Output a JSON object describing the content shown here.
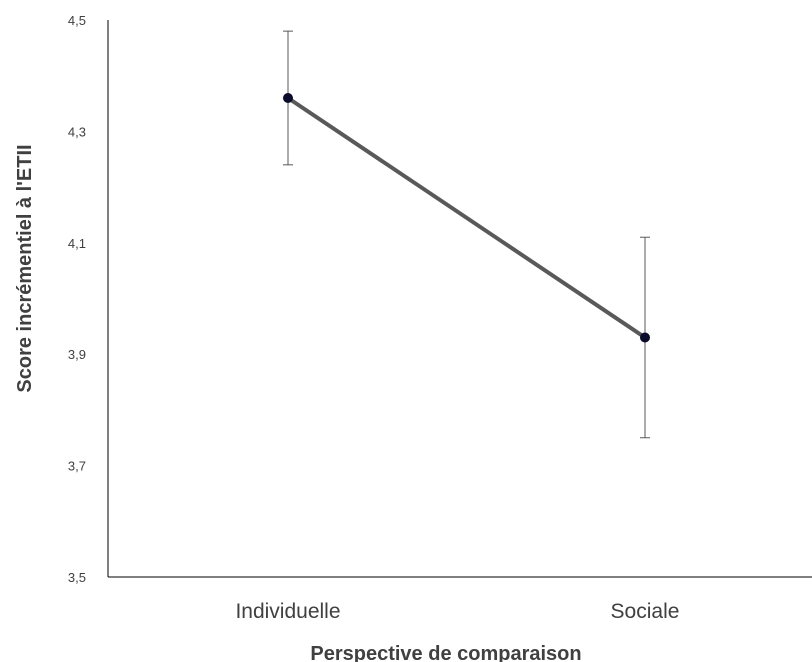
{
  "chart_data": {
    "type": "line",
    "title": "",
    "xlabel": "Perspective de comparaison",
    "ylabel": "Score incrémentiel à l'ETII",
    "ylim": [
      3.5,
      4.5
    ],
    "yticks": [
      "3,5",
      "3,7",
      "3,9",
      "4,1",
      "4,3",
      "4,5"
    ],
    "ytick_values": [
      3.5,
      3.7,
      3.9,
      4.1,
      4.3,
      4.5
    ],
    "categories": [
      "Individuelle",
      "Sociale"
    ],
    "series": [
      {
        "values": [
          4.36,
          3.93
        ],
        "error_lower": [
          4.24,
          3.75
        ],
        "error_upper": [
          4.48,
          4.11
        ],
        "color": "#595959",
        "marker_color": "#0b0b2a"
      }
    ],
    "grid": false,
    "legend": "none"
  }
}
